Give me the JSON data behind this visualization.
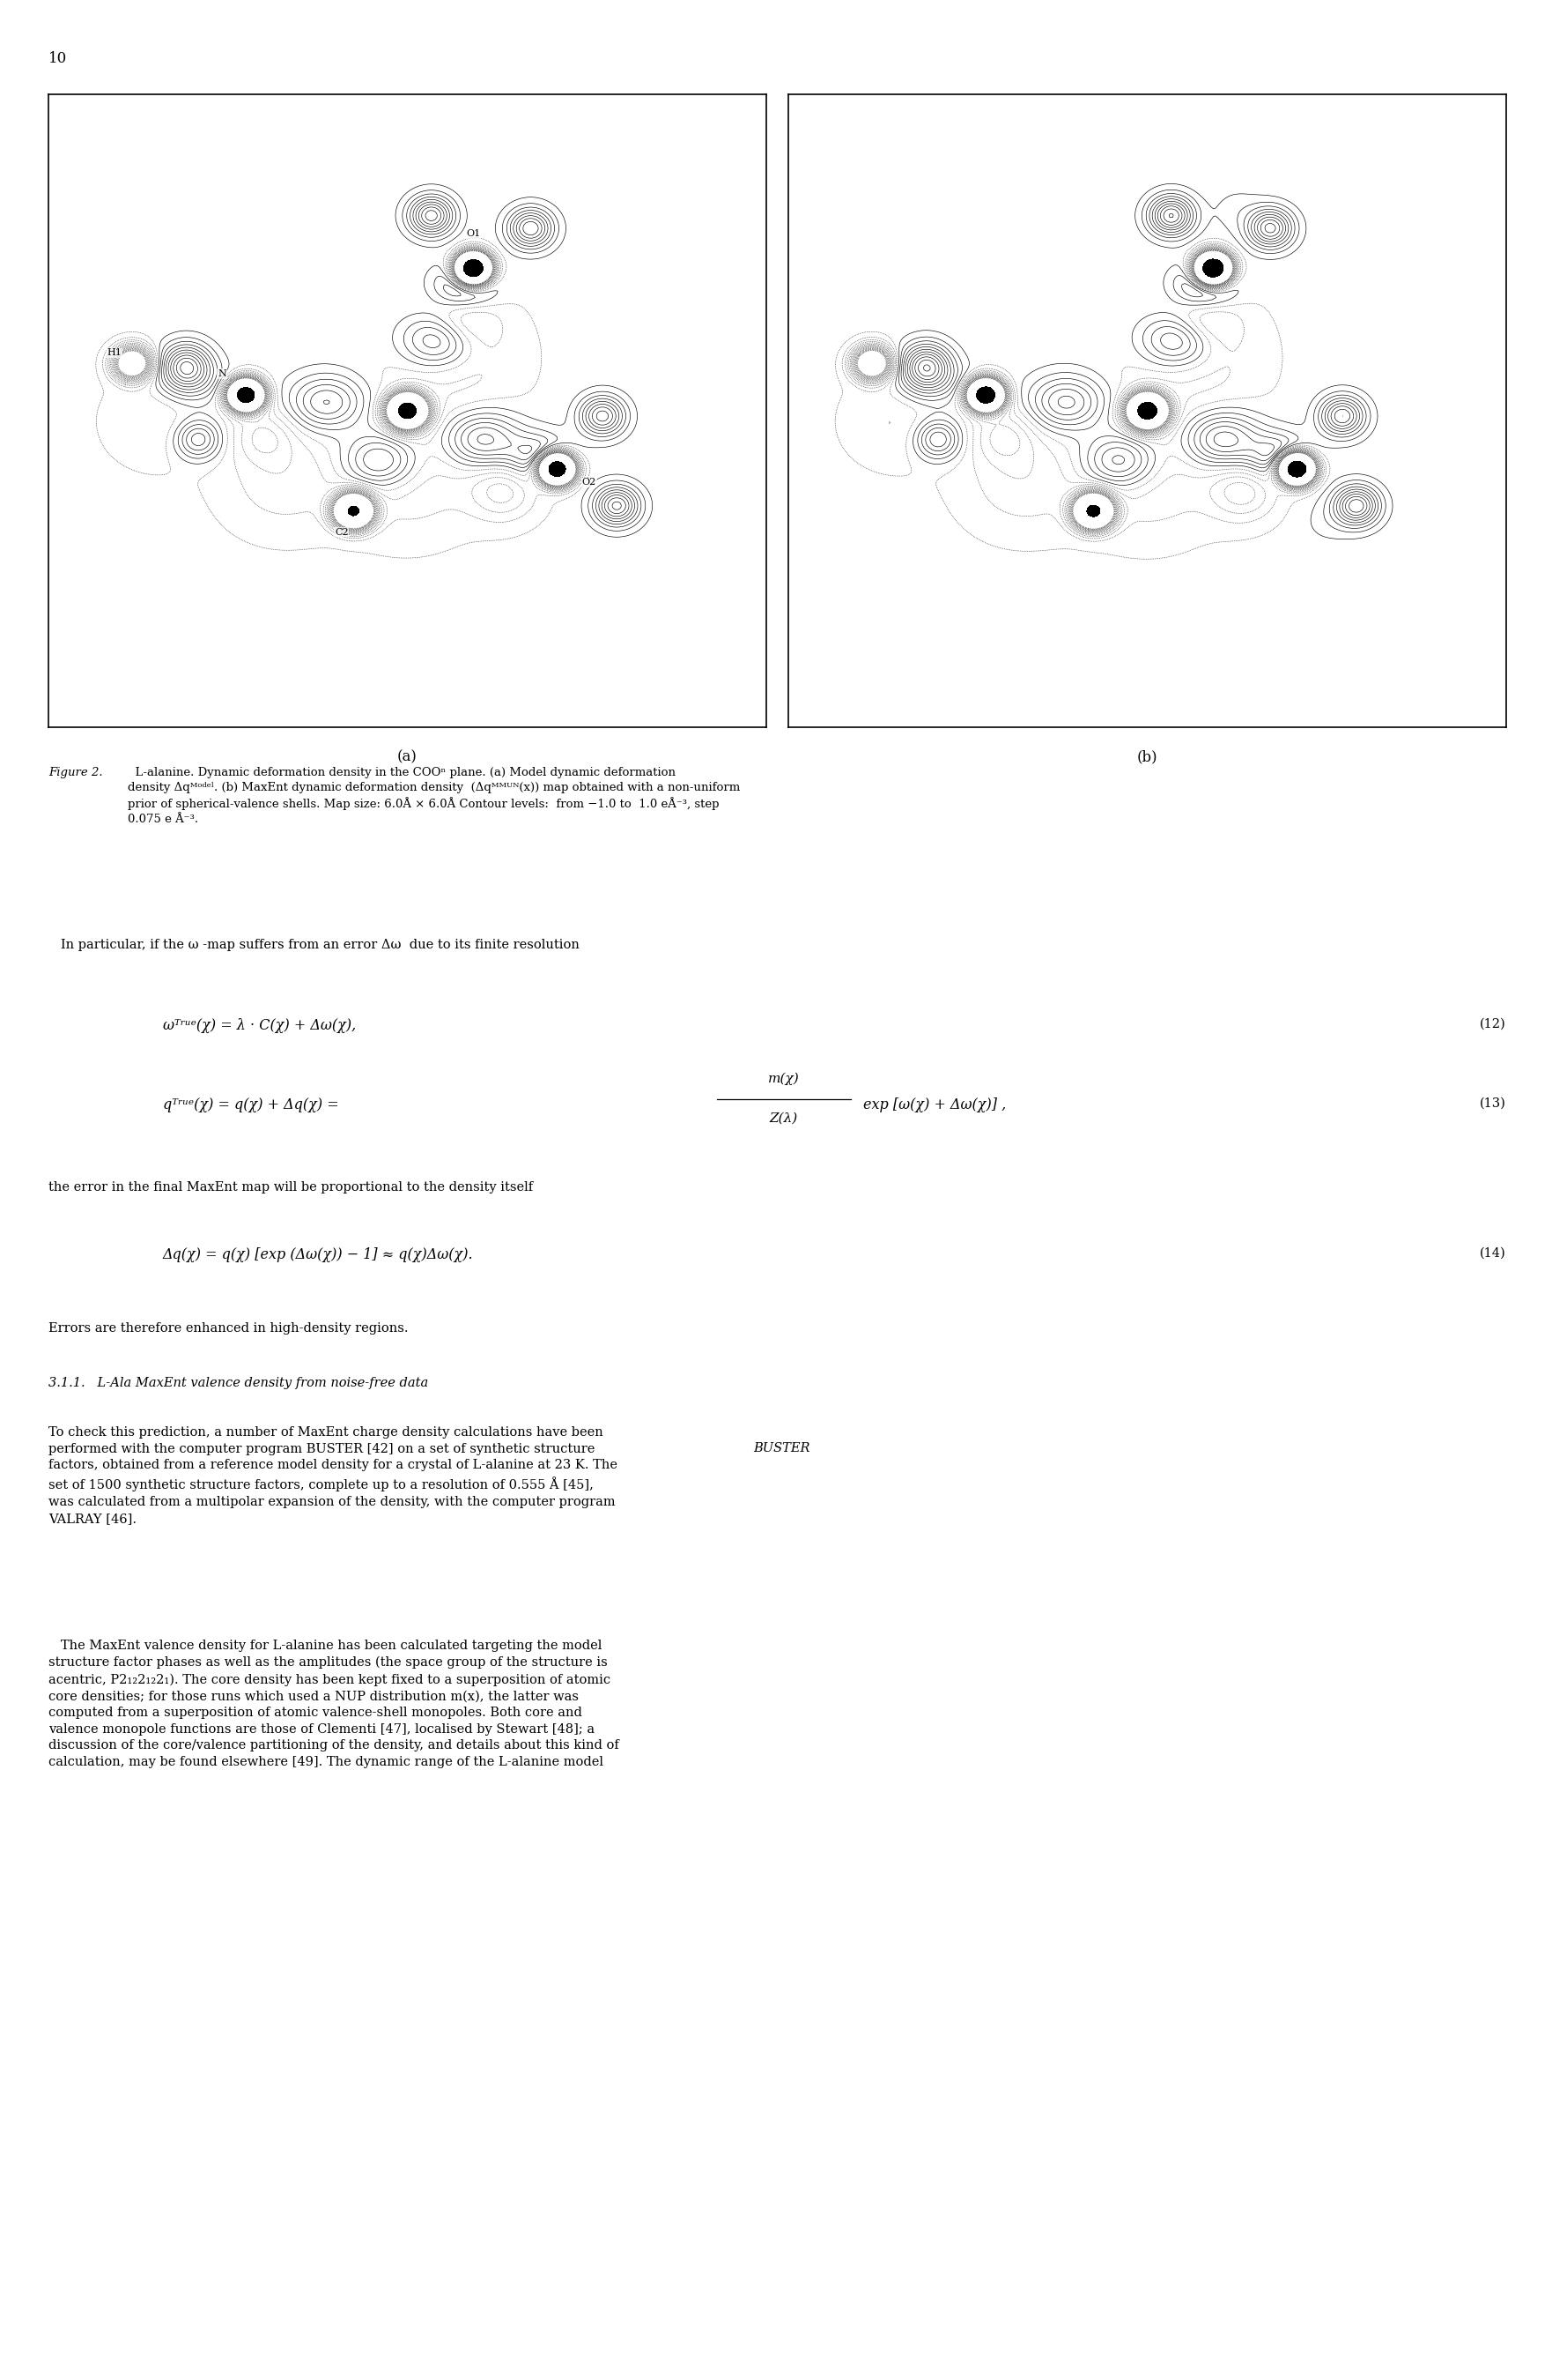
{
  "page_number": "10",
  "fig_label_a": "(a)",
  "fig_label_b": "(b)",
  "background_color": "#ffffff",
  "text_color": "#000000",
  "body_fontsize": 10.5,
  "eq_fontsize": 12,
  "caption_fontsize": 9.5,
  "page_num_fontsize": 12
}
